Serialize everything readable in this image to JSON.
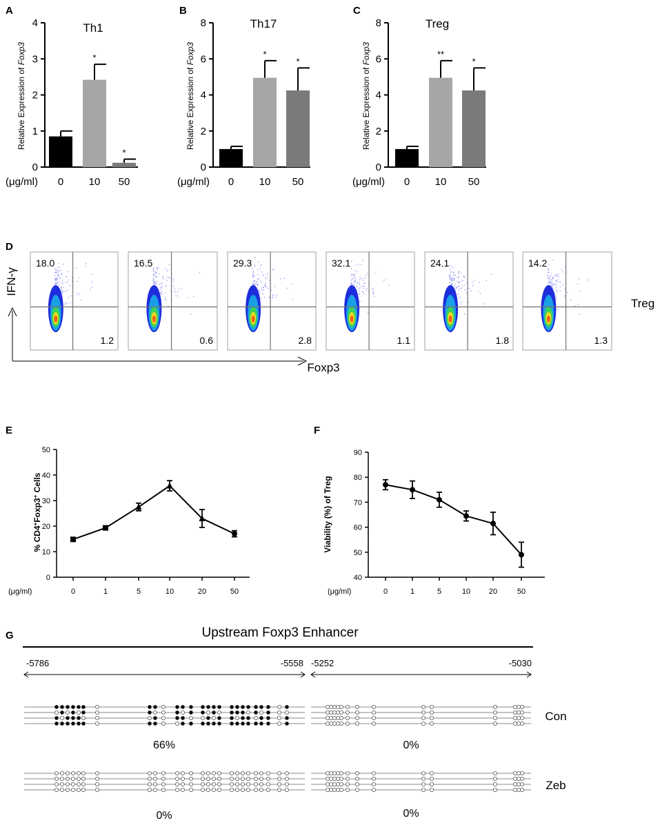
{
  "panel_labels": {
    "A": "A",
    "B": "B",
    "C": "C",
    "D": "D",
    "E": "E",
    "F": "F",
    "G": "G"
  },
  "colors": {
    "bar0": "#000000",
    "bar10": "#a6a6a6",
    "bar50": "#7b7b7b"
  },
  "chart_data": [
    {
      "id": "A",
      "type": "bar",
      "title": "Th1",
      "categories": [
        "0",
        "10",
        "50"
      ],
      "unit_label": "(μg/ml)",
      "values": [
        0.85,
        2.42,
        0.12
      ],
      "errors": [
        0.15,
        0.43,
        0.1
      ],
      "significance": [
        "",
        "*",
        "*"
      ],
      "ylabel_prefix": "Relative Expression of ",
      "ylabel_gene": "Foxp3",
      "ylim": [
        0,
        4
      ],
      "yticks": [
        "0",
        "1",
        "2",
        "3",
        "4"
      ]
    },
    {
      "id": "B",
      "type": "bar",
      "title": "Th17",
      "categories": [
        "0",
        "10",
        "50"
      ],
      "unit_label": "(μg/ml)",
      "values": [
        1.0,
        4.95,
        4.25
      ],
      "errors": [
        0.15,
        0.95,
        1.25
      ],
      "significance": [
        "",
        "*",
        "*"
      ],
      "ylabel_prefix": "Relative Expression of ",
      "ylabel_gene": "Foxp3",
      "ylim": [
        0,
        8
      ],
      "yticks": [
        "0",
        "2",
        "4",
        "6",
        "8"
      ]
    },
    {
      "id": "C",
      "type": "bar",
      "title": "Treg",
      "categories": [
        "0",
        "10",
        "50"
      ],
      "unit_label": "(μg/ml)",
      "values": [
        1.0,
        4.95,
        4.25
      ],
      "errors": [
        0.15,
        0.95,
        1.25
      ],
      "significance": [
        "",
        "**",
        "*"
      ],
      "ylabel_prefix": "Relative Expression of ",
      "ylabel_gene": "Foxp3",
      "ylim": [
        0,
        8
      ],
      "yticks": [
        "0",
        "2",
        "4",
        "6",
        "8"
      ]
    },
    {
      "id": "D",
      "type": "scatter",
      "description_type": "flow-cytometry-density",
      "xlabel": "Foxp3",
      "ylabel": "IFN-γ",
      "side_label": "Treg",
      "plots": [
        {
          "upper_left": "18.0",
          "lower_right": "1.2"
        },
        {
          "upper_left": "16.5",
          "lower_right": "0.6"
        },
        {
          "upper_left": "29.3",
          "lower_right": "2.8"
        },
        {
          "upper_left": "32.1",
          "lower_right": "1.1"
        },
        {
          "upper_left": "24.1",
          "lower_right": "1.8"
        },
        {
          "upper_left": "14.2",
          "lower_right": "1.3"
        }
      ]
    },
    {
      "id": "E",
      "type": "line",
      "categories": [
        "0",
        "1",
        "5",
        "10",
        "20",
        "50"
      ],
      "unit_label": "(μg/ml)",
      "values": [
        14.8,
        19.3,
        27.5,
        35.8,
        23.0,
        17.0
      ],
      "errors": [
        0.5,
        0.8,
        1.5,
        2.0,
        3.5,
        1.2
      ],
      "ylabel_parts": [
        "% CD4",
        "+",
        "Foxp3",
        "+",
        " Cells"
      ],
      "ylim": [
        0,
        50
      ],
      "yticks": [
        "0",
        "10",
        "20",
        "30",
        "40",
        "50"
      ]
    },
    {
      "id": "F",
      "type": "line",
      "categories": [
        "0",
        "1",
        "5",
        "10",
        "20",
        "50"
      ],
      "unit_label": "(μg/ml)",
      "values": [
        77.0,
        75.0,
        71.0,
        64.5,
        61.5,
        49.0
      ],
      "errors": [
        2.0,
        3.5,
        3.0,
        2.0,
        4.5,
        5.0
      ],
      "ylabel": "Viability (%) of Treg",
      "ylim": [
        40,
        90
      ],
      "yticks": [
        "40",
        "50",
        "60",
        "70",
        "80",
        "90"
      ]
    },
    {
      "id": "G",
      "type": "table",
      "title": "Upstream Foxp3 Enhancer",
      "region1": {
        "start": "-5786",
        "end": "-5558"
      },
      "region2": {
        "start": "-5252",
        "end": "-5030"
      },
      "groups": [
        {
          "name": "Con",
          "region1_pct": "66%",
          "region2_pct": "0%"
        },
        {
          "name": "Zeb",
          "region1_pct": "0%",
          "region2_pct": "0%"
        }
      ]
    }
  ]
}
